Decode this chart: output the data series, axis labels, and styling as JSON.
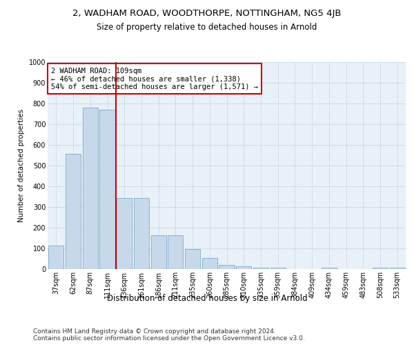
{
  "title": "2, WADHAM ROAD, WOODTHORPE, NOTTINGHAM, NG5 4JB",
  "subtitle": "Size of property relative to detached houses in Arnold",
  "xlabel": "Distribution of detached houses by size in Arnold",
  "ylabel": "Number of detached properties",
  "categories": [
    "37sqm",
    "62sqm",
    "87sqm",
    "111sqm",
    "136sqm",
    "161sqm",
    "186sqm",
    "211sqm",
    "235sqm",
    "260sqm",
    "285sqm",
    "310sqm",
    "335sqm",
    "359sqm",
    "384sqm",
    "409sqm",
    "434sqm",
    "459sqm",
    "483sqm",
    "508sqm",
    "533sqm"
  ],
  "values": [
    112,
    557,
    780,
    770,
    342,
    342,
    163,
    163,
    97,
    52,
    19,
    14,
    8,
    8,
    0,
    0,
    8,
    0,
    0,
    8,
    8
  ],
  "bar_color": "#c8d8eb",
  "bar_edge_color": "#7aaac8",
  "grid_color": "#d0dce8",
  "background_color": "#e8f0f8",
  "annotation_text": "2 WADHAM ROAD: 109sqm\n← 46% of detached houses are smaller (1,338)\n54% of semi-detached houses are larger (1,571) →",
  "annotation_box_color": "#ffffff",
  "annotation_box_edge": "#cc0000",
  "vline_color": "#cc0000",
  "ylim": [
    0,
    1000
  ],
  "yticks": [
    0,
    100,
    200,
    300,
    400,
    500,
    600,
    700,
    800,
    900,
    1000
  ],
  "footer": "Contains HM Land Registry data © Crown copyright and database right 2024.\nContains public sector information licensed under the Open Government Licence v3.0.",
  "title_fontsize": 9.5,
  "subtitle_fontsize": 8.5,
  "xlabel_fontsize": 8.5,
  "ylabel_fontsize": 7.5,
  "tick_fontsize": 7,
  "annotation_fontsize": 7.5,
  "footer_fontsize": 6.5
}
